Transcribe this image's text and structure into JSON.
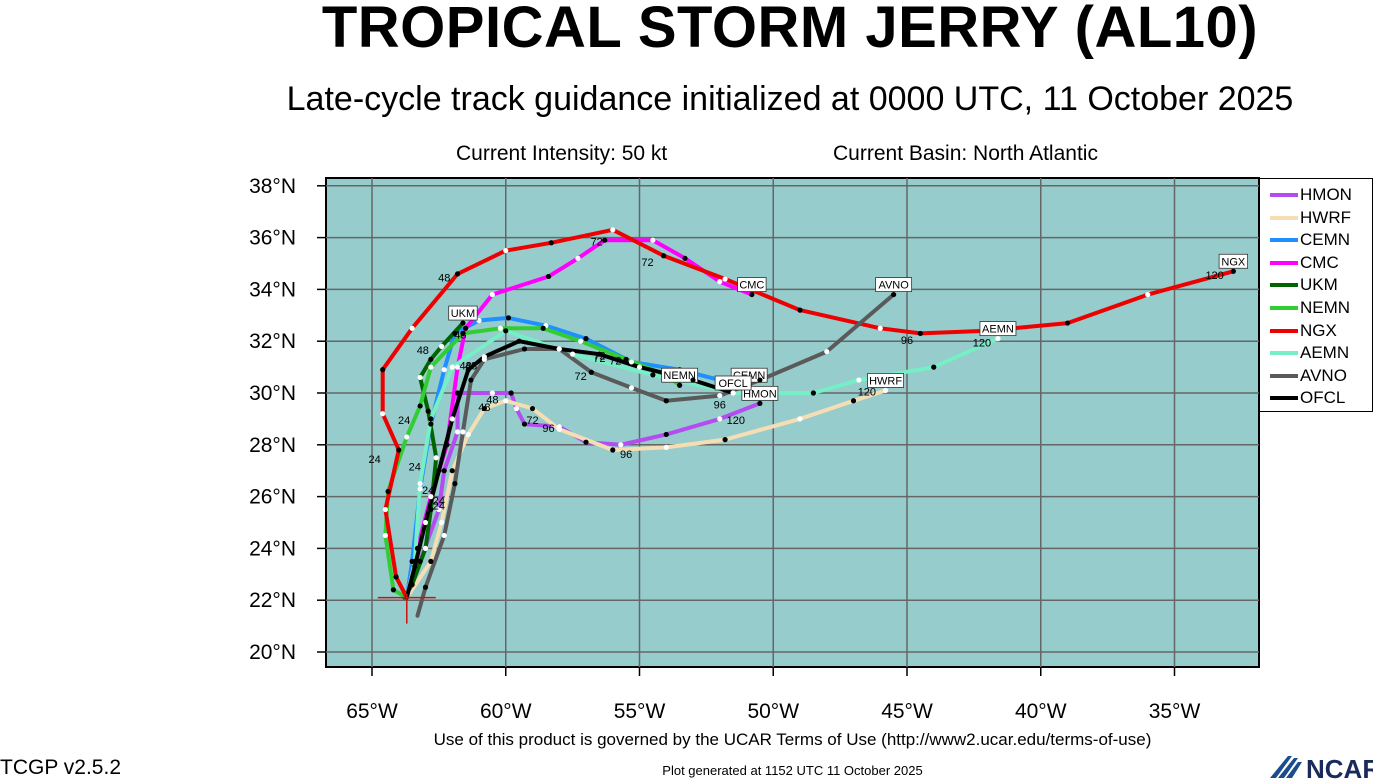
{
  "header": {
    "title": "TROPICAL STORM JERRY (AL10)",
    "subtitle": "Late-cycle track guidance initialized at 0000 UTC, 11 October 2025",
    "intensity": "Current Intensity: 50 kt",
    "basin": "Current Basin: North Atlantic"
  },
  "footer": {
    "terms": "Use of this product is governed by the UCAR Terms of Use (http://www2.ucar.edu/terms-of-use)",
    "generated": "Plot generated at 1152 UTC   11 October 2025",
    "version": "TCGP v2.5.2",
    "logo_text": "NCAR"
  },
  "map": {
    "ocean_color": "#96cccc",
    "lon_range": [
      -67,
      -32
    ],
    "lat_range": [
      19.5,
      38.3
    ],
    "lon_ticks": [
      -65,
      -60,
      -55,
      -50,
      -45,
      -40,
      -35
    ],
    "lat_ticks": [
      20,
      22,
      24,
      26,
      28,
      30,
      32,
      34,
      36,
      38
    ],
    "lon_tick_labels": [
      "65°W",
      "60°W",
      "55°W",
      "50°W",
      "45°W",
      "40°W",
      "35°W"
    ],
    "lat_tick_labels": [
      "20°N",
      "22°N",
      "24°N",
      "26°N",
      "28°N",
      "30°N",
      "32°N",
      "34°N",
      "36°N",
      "38°N"
    ],
    "gridlines": true,
    "current_position": {
      "lon": -63.7,
      "lat": 22.1
    }
  },
  "legend": [
    {
      "label": "HMON",
      "color": "#b44cf0"
    },
    {
      "label": "HWRF",
      "color": "#f5deb3"
    },
    {
      "label": "CEMN",
      "color": "#1e90ff"
    },
    {
      "label": "CMC",
      "color": "#ff00ff"
    },
    {
      "label": "UKM",
      "color": "#006400"
    },
    {
      "label": "NEMN",
      "color": "#32cd32"
    },
    {
      "label": "NGX",
      "color": "#ee0000"
    },
    {
      "label": "AEMN",
      "color": "#76eec6"
    },
    {
      "label": "AVNO",
      "color": "#5a5a5a"
    },
    {
      "label": "OFCL",
      "color": "#000000"
    }
  ],
  "chart_data": {
    "type": "map",
    "series": [
      {
        "name": "HMON",
        "color": "#b44cf0",
        "end_label": "HMON",
        "points": [
          [
            -63.7,
            22.1
          ],
          [
            -63.2,
            23.5
          ],
          [
            -62.5,
            25.5
          ],
          [
            -62.3,
            27.0
          ],
          [
            -61.8,
            28.5
          ],
          [
            -61.8,
            30.0
          ],
          [
            -60.5,
            30.0
          ],
          [
            -59.8,
            30.0
          ],
          [
            -59.6,
            29.4
          ],
          [
            -59.3,
            28.8
          ],
          [
            -58.0,
            28.7
          ],
          [
            -57.0,
            28.1
          ],
          [
            -55.7,
            28.0
          ],
          [
            -54.0,
            28.4
          ],
          [
            -52.0,
            29.0
          ],
          [
            -50.5,
            29.6
          ]
        ],
        "labels": [
          {
            "text": "24",
            "lon": -62.5,
            "lat": 25.5
          },
          {
            "text": "48",
            "lon": -60.5,
            "lat": 29.6
          },
          {
            "text": "72",
            "lon": -59.0,
            "lat": 28.8
          },
          {
            "text": "96",
            "lon": -58.4,
            "lat": 28.5
          },
          {
            "text": "120",
            "lon": -51.4,
            "lat": 28.8
          }
        ]
      },
      {
        "name": "HWRF",
        "color": "#f5deb3",
        "end_label": "HWRF",
        "points": [
          [
            -63.7,
            22.1
          ],
          [
            -62.8,
            23.5
          ],
          [
            -62.4,
            25.0
          ],
          [
            -62.0,
            27.0
          ],
          [
            -61.4,
            28.4
          ],
          [
            -60.8,
            29.4
          ],
          [
            -60.0,
            29.7
          ],
          [
            -59.0,
            29.4
          ],
          [
            -58.0,
            28.6
          ],
          [
            -56.0,
            27.8
          ],
          [
            -54.0,
            27.9
          ],
          [
            -51.8,
            28.2
          ],
          [
            -49.0,
            29.0
          ],
          [
            -47.0,
            29.7
          ],
          [
            -45.8,
            30.1
          ]
        ],
        "labels": [
          {
            "text": "48",
            "lon": -60.8,
            "lat": 29.3
          },
          {
            "text": "96",
            "lon": -55.5,
            "lat": 27.5
          },
          {
            "text": "120",
            "lon": -46.5,
            "lat": 29.9
          }
        ]
      },
      {
        "name": "CEMN",
        "color": "#1e90ff",
        "end_label": "CEMN",
        "points": [
          [
            -63.7,
            22.1
          ],
          [
            -63.5,
            23.5
          ],
          [
            -63.2,
            26.3
          ],
          [
            -62.8,
            28.8
          ],
          [
            -62.3,
            30.9
          ],
          [
            -61.9,
            32.3
          ],
          [
            -61.0,
            32.8
          ],
          [
            -59.9,
            32.9
          ],
          [
            -58.5,
            32.6
          ],
          [
            -57.0,
            32.1
          ],
          [
            -55.3,
            31.2
          ],
          [
            -53.5,
            30.9
          ],
          [
            -52.0,
            30.5
          ],
          [
            -50.9,
            30.3
          ]
        ],
        "labels": [
          {
            "text": "72",
            "lon": -56.5,
            "lat": 31.3
          }
        ]
      },
      {
        "name": "CMC",
        "color": "#ff00ff",
        "end_label": "CMC",
        "points": [
          [
            -63.7,
            22.1
          ],
          [
            -63.3,
            24.0
          ],
          [
            -62.8,
            26.0
          ],
          [
            -62.2,
            28.0
          ],
          [
            -61.8,
            31.0
          ],
          [
            -61.5,
            32.5
          ],
          [
            -60.5,
            33.8
          ],
          [
            -58.4,
            34.5
          ],
          [
            -57.3,
            35.2
          ],
          [
            -56.3,
            35.9
          ],
          [
            -54.5,
            35.9
          ],
          [
            -53.3,
            35.2
          ],
          [
            -52.0,
            34.3
          ],
          [
            -50.8,
            33.8
          ]
        ],
        "labels": [
          {
            "text": "48",
            "lon": -61.6,
            "lat": 32.8
          },
          {
            "text": "72",
            "lon": -56.6,
            "lat": 35.7
          }
        ]
      },
      {
        "name": "UKM",
        "color": "#006400",
        "end_label": "UKM",
        "points": [
          [
            -63.8,
            22.1
          ],
          [
            -63.5,
            22.6
          ],
          [
            -63.0,
            24.0
          ],
          [
            -62.8,
            25.5
          ],
          [
            -62.6,
            27.5
          ],
          [
            -62.9,
            29.3
          ],
          [
            -63.2,
            30.6
          ],
          [
            -62.8,
            31.3
          ],
          [
            -62.4,
            31.8
          ],
          [
            -61.6,
            32.7
          ]
        ],
        "labels": [
          {
            "text": "24",
            "lon": -63.4,
            "lat": 27.0
          },
          {
            "text": "48",
            "lon": -63.1,
            "lat": 31.5
          }
        ]
      },
      {
        "name": "NEMN",
        "color": "#32cd32",
        "end_label": "NEMN",
        "points": [
          [
            -63.7,
            22.1
          ],
          [
            -64.2,
            22.4
          ],
          [
            -64.5,
            24.5
          ],
          [
            -64.4,
            26.2
          ],
          [
            -63.7,
            28.3
          ],
          [
            -63.2,
            29.5
          ],
          [
            -62.8,
            31.0
          ],
          [
            -61.6,
            32.3
          ],
          [
            -60.2,
            32.5
          ],
          [
            -58.6,
            32.5
          ],
          [
            -57.2,
            32.0
          ],
          [
            -55.5,
            31.3
          ],
          [
            -54.0,
            30.7
          ],
          [
            -53.5,
            30.3
          ]
        ],
        "labels": [
          {
            "text": "24",
            "lon": -63.8,
            "lat": 28.8
          },
          {
            "text": "48",
            "lon": -61.7,
            "lat": 32.1
          },
          {
            "text": "72",
            "lon": -55.9,
            "lat": 31.1
          }
        ]
      },
      {
        "name": "NGX",
        "color": "#ee0000",
        "end_label": "NGX",
        "points": [
          [
            -63.7,
            22.1
          ],
          [
            -64.1,
            22.9
          ],
          [
            -64.5,
            25.5
          ],
          [
            -64.0,
            27.8
          ],
          [
            -64.6,
            29.2
          ],
          [
            -64.6,
            30.9
          ],
          [
            -63.5,
            32.5
          ],
          [
            -61.8,
            34.6
          ],
          [
            -60.0,
            35.5
          ],
          [
            -58.3,
            35.8
          ],
          [
            -56.0,
            36.3
          ],
          [
            -54.1,
            35.3
          ],
          [
            -51.8,
            34.4
          ],
          [
            -49.0,
            33.2
          ],
          [
            -46.0,
            32.5
          ],
          [
            -44.5,
            32.3
          ],
          [
            -42.0,
            32.4
          ],
          [
            -39.0,
            32.7
          ],
          [
            -36.0,
            33.8
          ],
          [
            -32.8,
            34.7
          ]
        ],
        "labels": [
          {
            "text": "24",
            "lon": -64.9,
            "lat": 27.3
          },
          {
            "text": "48",
            "lon": -62.3,
            "lat": 34.3
          },
          {
            "text": "72",
            "lon": -54.7,
            "lat": 34.9
          },
          {
            "text": "96",
            "lon": -45.0,
            "lat": 31.9
          },
          {
            "text": "120",
            "lon": -33.5,
            "lat": 34.4
          }
        ]
      },
      {
        "name": "AEMN",
        "color": "#76eec6",
        "end_label": "AEMN",
        "points": [
          [
            -63.7,
            22.1
          ],
          [
            -63.4,
            23.5
          ],
          [
            -63.2,
            26.5
          ],
          [
            -62.8,
            29.0
          ],
          [
            -62.0,
            31.0
          ],
          [
            -60.0,
            32.4
          ],
          [
            -57.5,
            31.5
          ],
          [
            -54.5,
            30.7
          ],
          [
            -51.5,
            30.0
          ],
          [
            -48.5,
            30.0
          ],
          [
            -46.8,
            30.5
          ],
          [
            -44.0,
            31.0
          ],
          [
            -41.6,
            32.1
          ]
        ],
        "labels": [
          {
            "text": "120",
            "lon": -42.2,
            "lat": 31.8
          }
        ]
      },
      {
        "name": "AVNO",
        "color": "#5a5a5a",
        "end_label": "AVNO",
        "points": [
          [
            -63.3,
            21.4
          ],
          [
            -63.0,
            22.5
          ],
          [
            -62.3,
            24.5
          ],
          [
            -61.9,
            26.5
          ],
          [
            -61.6,
            28.5
          ],
          [
            -61.3,
            30.5
          ],
          [
            -60.8,
            31.3
          ],
          [
            -59.3,
            31.7
          ],
          [
            -58.0,
            31.7
          ],
          [
            -56.8,
            30.8
          ],
          [
            -55.3,
            30.2
          ],
          [
            -54.0,
            29.7
          ],
          [
            -52.0,
            29.9
          ],
          [
            -50.5,
            30.5
          ],
          [
            -48.0,
            31.6
          ],
          [
            -45.5,
            33.8
          ]
        ],
        "labels": [
          {
            "text": "24",
            "lon": -62.5,
            "lat": 25.7
          },
          {
            "text": "48",
            "lon": -61.3,
            "lat": 30.9
          },
          {
            "text": "72",
            "lon": -57.2,
            "lat": 30.5
          },
          {
            "text": "96",
            "lon": -52.0,
            "lat": 29.4
          }
        ]
      },
      {
        "name": "OFCL",
        "color": "#000000",
        "end_label": "OFCL",
        "points": [
          [
            -63.7,
            22.1
          ],
          [
            -63.4,
            23.3
          ],
          [
            -63.0,
            25.0
          ],
          [
            -62.5,
            27.0
          ],
          [
            -62.0,
            29.0
          ],
          [
            -61.4,
            30.9
          ],
          [
            -60.8,
            31.4
          ],
          [
            -59.5,
            32.0
          ],
          [
            -58.0,
            31.7
          ],
          [
            -56.5,
            31.5
          ],
          [
            -55.0,
            31.0
          ],
          [
            -53.0,
            30.5
          ],
          [
            -51.5,
            30.0
          ]
        ],
        "labels": [
          {
            "text": "24",
            "lon": -62.9,
            "lat": 26.1
          },
          {
            "text": "48",
            "lon": -61.5,
            "lat": 30.9
          },
          {
            "text": "72",
            "lon": -56.5,
            "lat": 31.2
          }
        ]
      }
    ]
  }
}
